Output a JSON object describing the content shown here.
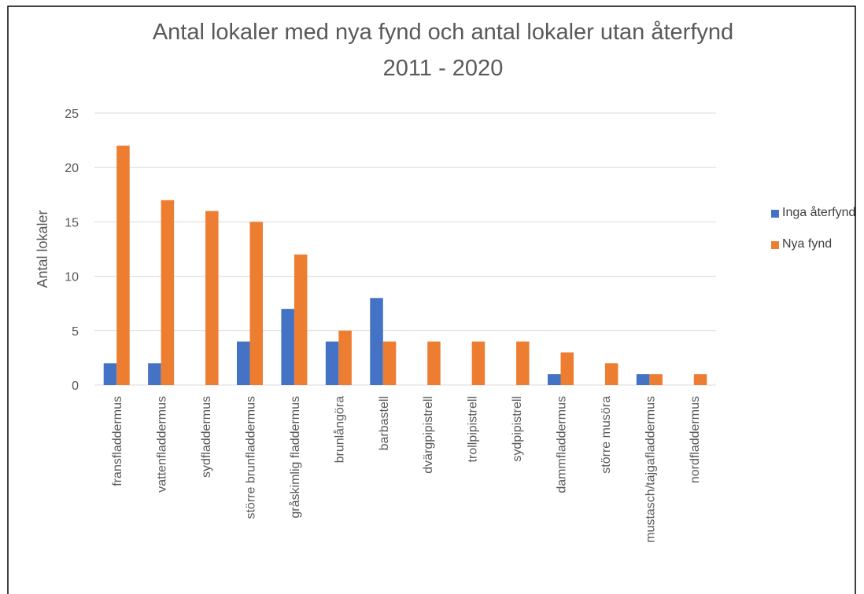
{
  "chart_data": {
    "type": "bar",
    "title": [
      "Antal lokaler med nya fynd och antal lokaler utan återfynd",
      "2011 - 2020"
    ],
    "y_label": "Antal lokaler",
    "categories": [
      "fransfladdermus",
      "vattenfladdermus",
      "sydfladdermus",
      "större brunfladdermus",
      "gråskimlig fladdermus",
      "brunlångöra",
      "barbastell",
      "dvärgpipistrell",
      "trollpipistrell",
      "sydpipistrell",
      "dammfladdermus",
      "större musöra",
      "mustasch/tajgafladdermus",
      "nordfladdermus"
    ],
    "series": [
      {
        "name": "Inga återfynd",
        "color": "#4472c4",
        "values": [
          2,
          2,
          0,
          4,
          7,
          4,
          8,
          0,
          0,
          0,
          1,
          0,
          1,
          0
        ]
      },
      {
        "name": "Nya fynd",
        "color": "#ed7d31",
        "values": [
          22,
          17,
          16,
          15,
          12,
          5,
          4,
          4,
          4,
          4,
          3,
          2,
          1,
          1
        ]
      }
    ],
    "ylim": [
      0,
      25
    ],
    "yticks": [
      0,
      5,
      10,
      15,
      20,
      25
    ],
    "grid": true,
    "legend": "right"
  }
}
